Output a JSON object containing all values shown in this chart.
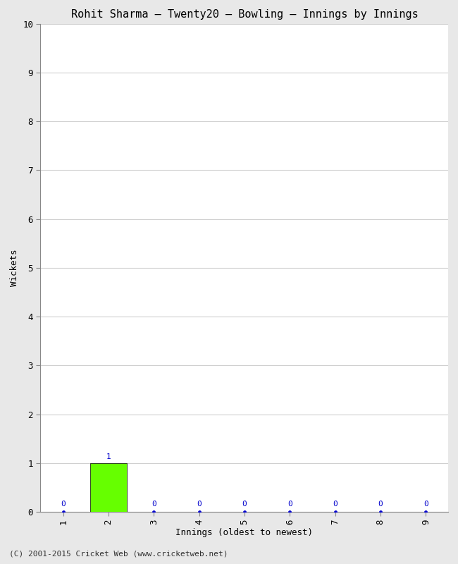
{
  "title": "Rohit Sharma – Twenty20 – Bowling – Innings by Innings",
  "xlabel": "Innings (oldest to newest)",
  "ylabel": "Wickets",
  "innings": [
    1,
    2,
    3,
    4,
    5,
    6,
    7,
    8,
    9
  ],
  "wickets": [
    0,
    1,
    0,
    0,
    0,
    0,
    0,
    0,
    0
  ],
  "bar_color": "#66ff00",
  "dot_color": "#0000cc",
  "ylim": [
    0,
    10
  ],
  "xlim": [
    0.5,
    9.5
  ],
  "yticks": [
    0,
    1,
    2,
    3,
    4,
    5,
    6,
    7,
    8,
    9,
    10
  ],
  "xticks": [
    1,
    2,
    3,
    4,
    5,
    6,
    7,
    8,
    9
  ],
  "background_color": "#e8e8e8",
  "plot_bg_color": "#ffffff",
  "grid_color": "#d0d0d0",
  "title_fontsize": 11,
  "label_fontsize": 9,
  "tick_fontsize": 9,
  "annotation_fontsize": 8,
  "footer": "(C) 2001-2015 Cricket Web (www.cricketweb.net)"
}
